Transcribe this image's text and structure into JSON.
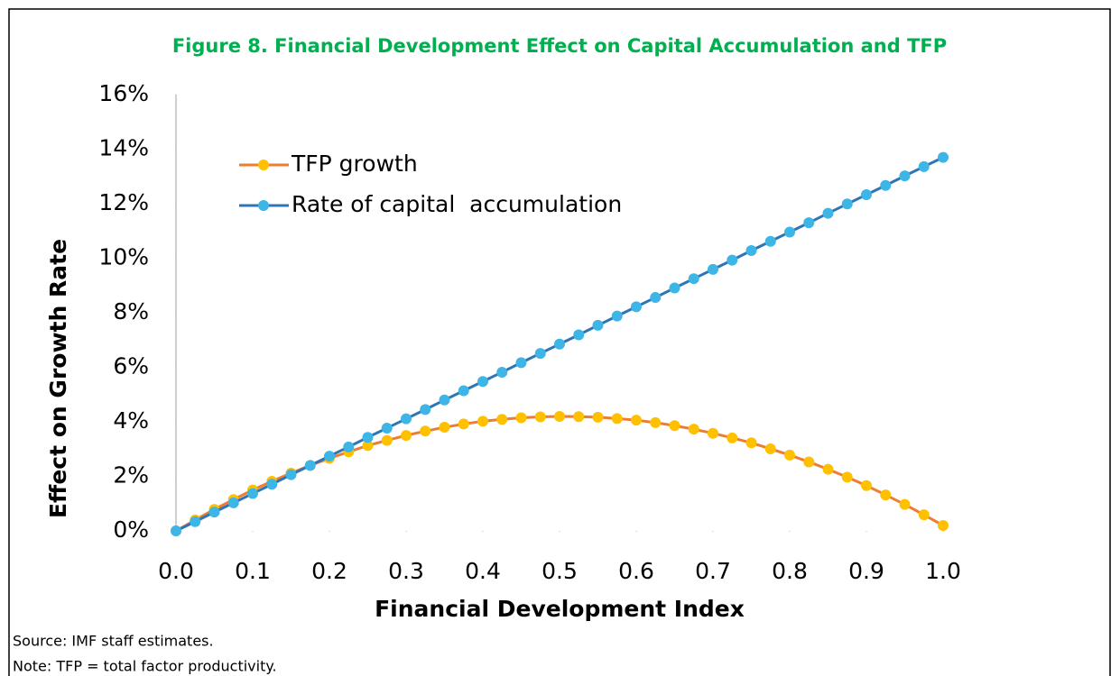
{
  "chart_data": {
    "type": "line",
    "title": "Figure 8. Financial Development Effect on Capital Accumulation and TFP",
    "x_label": "Financial Development Index",
    "y_label": "Effect on Growth Rate",
    "x": [
      0,
      0.025,
      0.05,
      0.075,
      0.1,
      0.125,
      0.15,
      0.175,
      0.2,
      0.225,
      0.25,
      0.275,
      0.3,
      0.325,
      0.35,
      0.375,
      0.4,
      0.425,
      0.45,
      0.475,
      0.5,
      0.525,
      0.55,
      0.575,
      0.6,
      0.625,
      0.65,
      0.675,
      0.7,
      0.725,
      0.75,
      0.775,
      0.8,
      0.825,
      0.85,
      0.875,
      0.9,
      0.925,
      0.95,
      0.975,
      1.0
    ],
    "series": [
      {
        "name": "TFP growth",
        "color": "#ED7D31",
        "marker_color": "#FFC000",
        "values": [
          0,
          0.4,
          0.79,
          1.15,
          1.5,
          1.82,
          2.12,
          2.4,
          2.66,
          2.9,
          3.13,
          3.32,
          3.5,
          3.66,
          3.8,
          3.92,
          4.02,
          4.09,
          4.15,
          4.18,
          4.2,
          4.19,
          4.17,
          4.12,
          4.06,
          3.97,
          3.86,
          3.73,
          3.58,
          3.41,
          3.23,
          3.01,
          2.78,
          2.53,
          2.26,
          1.97,
          1.66,
          1.32,
          0.97,
          0.59,
          0.2
        ]
      },
      {
        "name": "Rate of capital  accumulation",
        "color": "#2E75B6",
        "marker_color": "#3DB5E6",
        "values": [
          0,
          0.34,
          0.69,
          1.03,
          1.37,
          1.71,
          2.06,
          2.4,
          2.74,
          3.08,
          3.43,
          3.77,
          4.11,
          4.45,
          4.8,
          5.14,
          5.48,
          5.82,
          6.17,
          6.51,
          6.85,
          7.19,
          7.54,
          7.88,
          8.22,
          8.56,
          8.91,
          9.25,
          9.59,
          9.93,
          10.28,
          10.62,
          10.96,
          11.3,
          11.65,
          11.99,
          12.33,
          12.67,
          13.02,
          13.36,
          13.7
        ]
      }
    ],
    "xlim": [
      0,
      1.0
    ],
    "xticks": [
      {
        "value": 0,
        "label": "0.0"
      },
      0.1,
      0.2,
      0.3,
      0.4,
      0.5,
      0.6,
      0.7,
      0.8,
      0.9,
      {
        "value": 1.0,
        "label": "1.0"
      }
    ],
    "ylim": [
      0,
      16
    ],
    "yticks": [
      {
        "value": 0,
        "label": "0%"
      },
      {
        "value": 2,
        "label": "2%"
      },
      {
        "value": 4,
        "label": "4%"
      },
      {
        "value": 6,
        "label": "6%"
      },
      {
        "value": 8,
        "label": "8%"
      },
      {
        "value": 10,
        "label": "10%"
      },
      {
        "value": 12,
        "label": "12%"
      },
      {
        "value": 14,
        "label": "14%"
      },
      {
        "value": 16,
        "label": "16%"
      }
    ],
    "grid": false,
    "legend": "upper left",
    "notes": [
      "Source: IMF staff estimates.",
      "Note: TFP = total factor productivity."
    ]
  }
}
